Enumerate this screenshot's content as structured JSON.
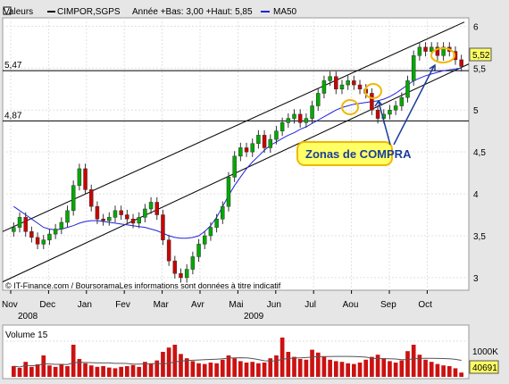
{
  "header": {
    "valeurs_label": "Valeurs",
    "ticker": "CIMPOR,SGPS",
    "range_text": "Année +Bas: 3,00 +Haut: 5,85",
    "ma_label": "MA50",
    "credit": "© IT-Finance.com / BoursoramaLes informations sont données à titre indicatif"
  },
  "annotation": {
    "text": "Zonas de COMPRA"
  },
  "colors": {
    "up": "#00aa00",
    "down": "#cc0000",
    "ma": "#2222dd",
    "channel": "#000000",
    "volume": "#cc1111",
    "circle": "#f0b800",
    "label_bg": "#ffff66"
  },
  "chart_data": [
    {
      "type": "candlestick",
      "title": "CIMPOR,SGPS",
      "ylim": [
        2.85,
        6.1
      ],
      "yticks": [
        "3",
        "3,5",
        "4",
        "4,5",
        "5",
        "5,5",
        "6"
      ],
      "xticks": [
        "Nov",
        "Dec",
        "Jan",
        "Fev",
        "Mar",
        "Avr",
        "Mai",
        "Jun",
        "Jul",
        "Aou",
        "Sep",
        "Oct"
      ],
      "year_labels": [
        "2008",
        "2009"
      ],
      "last_value_label": "5,52",
      "horizontal_lines": [
        {
          "value": 5.47,
          "label": "5,47"
        },
        {
          "value": 4.87,
          "label": "4,87"
        }
      ],
      "close": [
        3.6,
        3.72,
        3.55,
        3.48,
        3.4,
        3.45,
        3.52,
        3.58,
        3.66,
        3.8,
        4.1,
        4.3,
        4.05,
        3.85,
        3.7,
        3.68,
        3.72,
        3.8,
        3.75,
        3.7,
        3.65,
        3.72,
        3.82,
        3.9,
        3.75,
        3.45,
        3.2,
        3.05,
        3.0,
        3.1,
        3.25,
        3.4,
        3.5,
        3.6,
        3.7,
        3.85,
        4.2,
        4.45,
        4.55,
        4.5,
        4.6,
        4.7,
        4.55,
        4.65,
        4.75,
        4.85,
        4.9,
        4.95,
        4.85,
        4.9,
        5.05,
        5.2,
        5.35,
        5.4,
        5.25,
        5.3,
        5.35,
        5.3,
        5.25,
        5.2,
        5.0,
        4.9,
        4.95,
        5.0,
        5.05,
        5.15,
        5.35,
        5.65,
        5.75,
        5.7,
        5.75,
        5.65,
        5.75,
        5.7,
        5.6,
        5.52
      ],
      "ma50": [
        3.85,
        3.8,
        3.75,
        3.7,
        3.65,
        3.6,
        3.58,
        3.57,
        3.58,
        3.6,
        3.62,
        3.65,
        3.67,
        3.68,
        3.68,
        3.67,
        3.66,
        3.65,
        3.64,
        3.63,
        3.62,
        3.61,
        3.6,
        3.58,
        3.56,
        3.53,
        3.5,
        3.48,
        3.47,
        3.47,
        3.48,
        3.5,
        3.55,
        3.62,
        3.72,
        3.85,
        3.98,
        4.1,
        4.2,
        4.3,
        4.38,
        4.45,
        4.52,
        4.58,
        4.62,
        4.66,
        4.7,
        4.73,
        4.77,
        4.8,
        4.84,
        4.88,
        4.92,
        4.96,
        5.0,
        5.03,
        5.05,
        5.07,
        5.08,
        5.09,
        5.1,
        5.11,
        5.13,
        5.16,
        5.2,
        5.25,
        5.3,
        5.35,
        5.38,
        5.41,
        5.43,
        5.45,
        5.47,
        5.48,
        5.49,
        5.5
      ],
      "channel_upper": [
        [
          3.55,
          6.05
        ],
        [
          5.85,
          5.98
        ]
      ],
      "channel_lower": [
        [
          2.95,
          3.0
        ],
        [
          5.85,
          5.55
        ]
      ]
    },
    {
      "type": "bar",
      "title": "Volume 15",
      "ytick": "1000K",
      "last_value_label": "40691",
      "values": [
        300,
        250,
        420,
        280,
        350,
        600,
        320,
        280,
        360,
        300,
        900,
        500,
        380,
        320,
        280,
        300,
        260,
        240,
        280,
        300,
        330,
        280,
        420,
        380,
        460,
        700,
        820,
        900,
        640,
        520,
        440,
        380,
        360,
        400,
        380,
        480,
        600,
        520,
        440,
        400,
        420,
        380,
        400,
        520,
        600,
        1100,
        700,
        560,
        500,
        480,
        760,
        680,
        560,
        480,
        440,
        420,
        380,
        360,
        400,
        480,
        560,
        620,
        520,
        440,
        400,
        460,
        720,
        900,
        620,
        480,
        420,
        360,
        320,
        300,
        240,
        120
      ],
      "ylim": [
        0,
        1400
      ]
    }
  ]
}
